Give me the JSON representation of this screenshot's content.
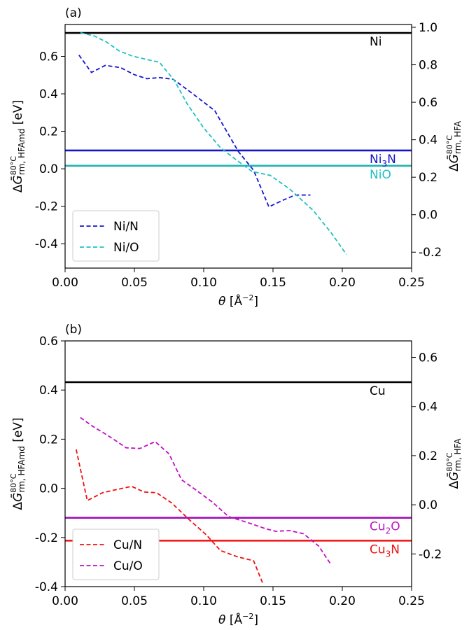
{
  "chart_data": [
    {
      "type": "line",
      "panel_label": "(a)",
      "xlabel": {
        "base": "θ [Å",
        "sup": "−2",
        "tail": "]"
      },
      "ylabel_left": {
        "delta": "Δ",
        "G": "Ḡ",
        "sup": "80°C",
        "sub": "rm, HFAmd",
        "tail": " [eV]"
      },
      "ylabel_right": {
        "delta": "Δ",
        "G": "Ḡ",
        "sup": "80°C",
        "sub": "rm, HFA"
      },
      "xlim": [
        0.0,
        0.25
      ],
      "ylim_left": [
        -0.53,
        0.77
      ],
      "ylim_right": [
        -0.285,
        1.015
      ],
      "xticks": [
        "0.00",
        "0.05",
        "0.10",
        "0.15",
        "0.20",
        "0.25"
      ],
      "yticks_left": [
        "-0.4",
        "-0.2",
        "0.0",
        "0.2",
        "0.4",
        "0.6"
      ],
      "yticks_right": [
        "-0.2",
        "0.0",
        "0.2",
        "0.4",
        "0.6",
        "0.8",
        "1.0"
      ],
      "hlines": [
        {
          "label": {
            "base": "Ni",
            "sub": "",
            "tail": ""
          },
          "y": 0.725,
          "color": "#000000",
          "label_color": "#000000"
        },
        {
          "label": {
            "base": "Ni",
            "sub": "3",
            "tail": "N"
          },
          "y": 0.098,
          "color": "#1515c8",
          "label_color": "#1515c8"
        },
        {
          "label": {
            "base": "NiO",
            "sub": "",
            "tail": ""
          },
          "y": 0.016,
          "color": "#20b2b2",
          "label_color": "#20c0c0"
        }
      ],
      "series": [
        {
          "name": "Ni/N",
          "color": "#1515d0",
          "x": [
            0.01,
            0.019,
            0.029,
            0.04,
            0.05,
            0.059,
            0.068,
            0.078,
            0.09,
            0.108,
            0.125,
            0.136,
            0.147,
            0.158,
            0.166,
            0.177
          ],
          "y": [
            0.607,
            0.514,
            0.552,
            0.54,
            0.502,
            0.481,
            0.487,
            0.478,
            0.412,
            0.31,
            0.092,
            -0.008,
            -0.203,
            -0.165,
            -0.14,
            -0.14
          ]
        },
        {
          "name": "Ni/O",
          "color": "#20c0c0",
          "x": [
            0.011,
            0.021,
            0.03,
            0.039,
            0.048,
            0.059,
            0.068,
            0.079,
            0.088,
            0.1,
            0.112,
            0.123,
            0.135,
            0.148,
            0.162,
            0.179,
            0.192,
            0.203
          ],
          "y": [
            0.726,
            0.709,
            0.676,
            0.629,
            0.603,
            0.583,
            0.569,
            0.47,
            0.348,
            0.218,
            0.113,
            0.05,
            -0.015,
            -0.035,
            -0.108,
            -0.222,
            -0.342,
            -0.457
          ]
        }
      ],
      "legend": {
        "position": "lower left"
      }
    },
    {
      "type": "line",
      "panel_label": "(b)",
      "xlabel": {
        "base": "θ [Å",
        "sup": "−2",
        "tail": "]"
      },
      "ylabel_left": {
        "delta": "Δ",
        "G": "Ḡ",
        "sup": "80°C",
        "sub": "rm, HFAmd",
        "tail": " [eV]"
      },
      "ylabel_right": {
        "delta": "Δ",
        "G": "Ḡ",
        "sup": "80°C",
        "sub": "rm, HFA"
      },
      "xlim": [
        0.0,
        0.25
      ],
      "ylim_left": [
        -0.4,
        0.6
      ],
      "ylim_right": [
        -0.333,
        0.667
      ],
      "xticks": [
        "0.00",
        "0.05",
        "0.10",
        "0.15",
        "0.20",
        "0.25"
      ],
      "yticks_left": [
        "-0.4",
        "-0.2",
        "0.0",
        "0.2",
        "0.4",
        "0.6"
      ],
      "yticks_right": [
        "-0.2",
        "0.0",
        "0.2",
        "0.4",
        "0.6"
      ],
      "hlines": [
        {
          "label": {
            "base": "Cu",
            "sub": "",
            "tail": ""
          },
          "y": 0.432,
          "color": "#000000",
          "label_color": "#000000"
        },
        {
          "label": {
            "base": "Cu",
            "sub": "2",
            "tail": "O"
          },
          "y": -0.12,
          "color": "#a010b8",
          "label_color": "#b818c0"
        },
        {
          "label": {
            "base": "Cu",
            "sub": "3",
            "tail": "N"
          },
          "y": -0.213,
          "color": "#f01010",
          "label_color": "#f01010"
        }
      ],
      "series": [
        {
          "name": "Cu/N",
          "color": "#f01010",
          "x": [
            0.008,
            0.016,
            0.027,
            0.037,
            0.048,
            0.057,
            0.066,
            0.077,
            0.09,
            0.102,
            0.112,
            0.124,
            0.136,
            0.143
          ],
          "y": [
            0.158,
            -0.05,
            -0.018,
            -0.005,
            0.008,
            -0.015,
            -0.018,
            -0.06,
            -0.13,
            -0.19,
            -0.253,
            -0.278,
            -0.295,
            -0.392
          ]
        },
        {
          "name": "Cu/O",
          "color": "#c010c0",
          "x": [
            0.011,
            0.02,
            0.03,
            0.037,
            0.044,
            0.054,
            0.065,
            0.075,
            0.084,
            0.094,
            0.106,
            0.118,
            0.132,
            0.145,
            0.152,
            0.162,
            0.172,
            0.183,
            0.192
          ],
          "y": [
            0.288,
            0.252,
            0.218,
            0.192,
            0.165,
            0.162,
            0.19,
            0.14,
            0.035,
            -0.005,
            -0.055,
            -0.115,
            -0.14,
            -0.165,
            -0.175,
            -0.172,
            -0.185,
            -0.235,
            -0.312
          ]
        }
      ],
      "legend": {
        "position": "lower left"
      }
    }
  ]
}
